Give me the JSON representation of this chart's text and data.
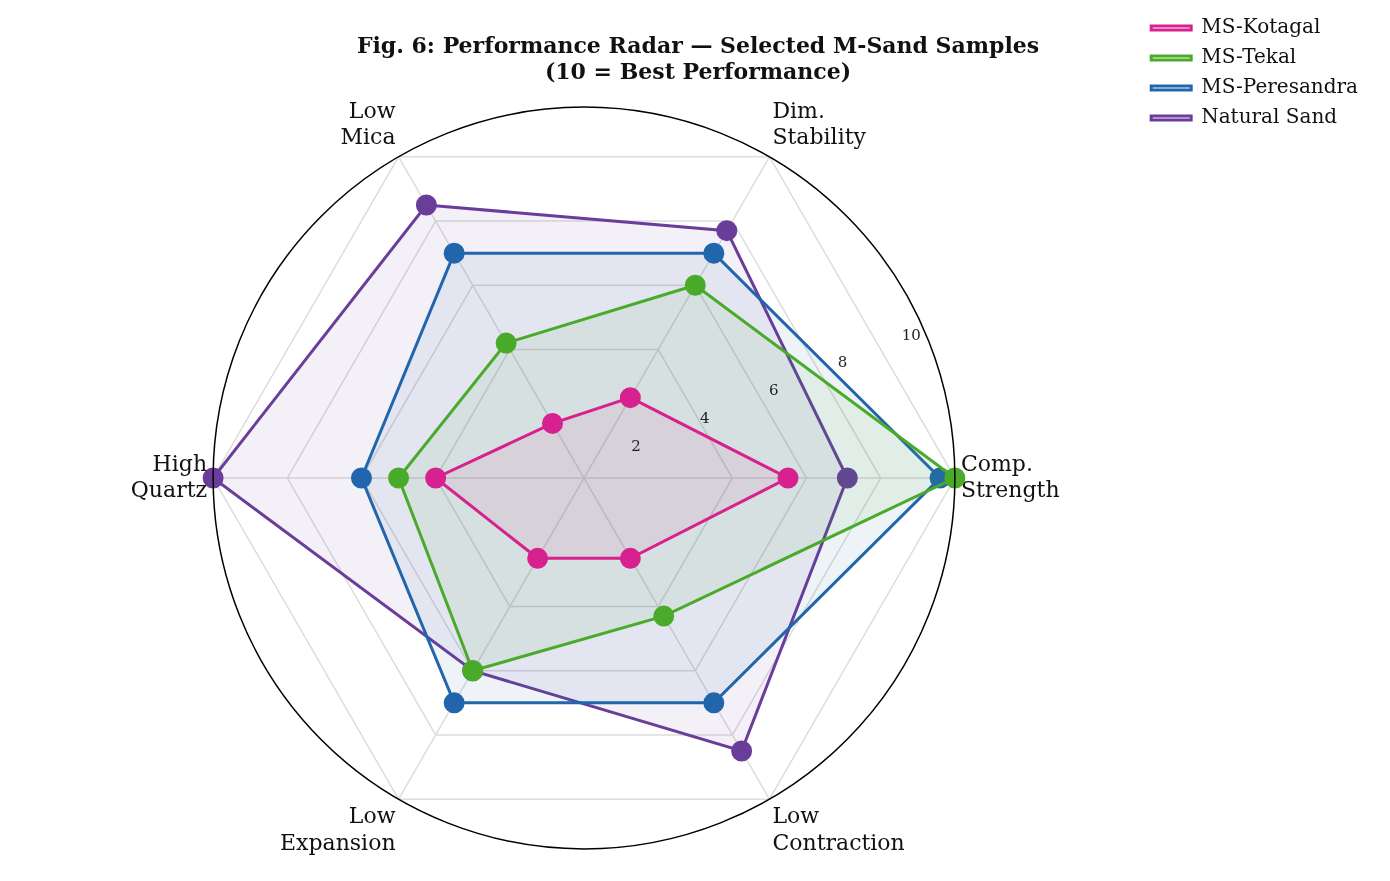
{
  "chart_data": {
    "type": "radar",
    "title": "Fig. 6: Performance Radar — Selected M-Sand Samples",
    "subtitle": "(10 = Best Performance)",
    "categories": [
      "Dim.\nStability",
      "Comp.\nStrength",
      "Low\nContraction",
      "Low\nExpansion",
      "High\nQuartz",
      "Low\nMica"
    ],
    "ylim": [
      0,
      10
    ],
    "yticks": [
      2,
      4,
      6,
      8,
      10
    ],
    "grid": true,
    "legend": "top right",
    "marker": "circle",
    "series": [
      {
        "name": "MS-Kotagal",
        "color": "#d6218f",
        "values": [
          2.5,
          5.5,
          2.5,
          2.5,
          4.0,
          1.7
        ]
      },
      {
        "name": "MS-Tekal",
        "color": "#4aaa2a",
        "values": [
          6.0,
          10.0,
          4.3,
          6.0,
          5.0,
          4.2
        ]
      },
      {
        "name": "MS-Peresandra",
        "color": "#2166ac",
        "values": [
          7.0,
          9.6,
          7.0,
          7.0,
          6.0,
          7.0
        ]
      },
      {
        "name": "Natural Sand",
        "color": "#6a3d9a",
        "values": [
          7.7,
          7.1,
          8.5,
          6.0,
          10.0,
          8.5
        ]
      }
    ]
  }
}
